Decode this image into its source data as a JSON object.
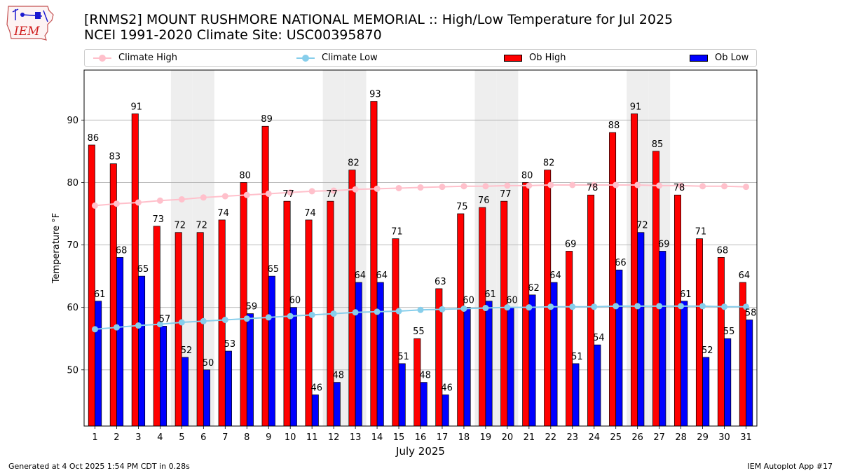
{
  "header": {
    "title_line1": "[RNMS2] MOUNT RUSHMORE NATIONAL MEMORIAL :: High/Low Temperature for Jul 2025",
    "title_line2": "NCEI 1991-2020 Climate Site: USC00395870",
    "logo_text": "IEM"
  },
  "legend": {
    "climate_high": "Climate High",
    "climate_low": "Climate Low",
    "ob_high": "Ob High",
    "ob_low": "Ob Low"
  },
  "footer": {
    "generated": "Generated at 4 Oct 2025 1:54 PM CDT in 0.28s",
    "app": "IEM Autoplot App #17"
  },
  "colors": {
    "ob_high": "#ff0000",
    "ob_low": "#0000ff",
    "climate_high": "#ffc0cb",
    "climate_low": "#87ceeb",
    "weekend_shade": "#eeeeee",
    "grid": "#b0b0b0"
  },
  "chart_data": {
    "type": "bar",
    "title": "[RNMS2] MOUNT RUSHMORE NATIONAL MEMORIAL :: High/Low Temperature for Jul 2025",
    "xlabel": "July 2025",
    "ylabel": "Temperature °F",
    "ylim": [
      41,
      98
    ],
    "yticks": [
      50,
      60,
      70,
      80,
      90
    ],
    "grid": "y",
    "legend_position": "top",
    "categories": [
      "1",
      "2",
      "3",
      "4",
      "5",
      "6",
      "7",
      "8",
      "9",
      "10",
      "11",
      "12",
      "13",
      "14",
      "15",
      "16",
      "17",
      "18",
      "19",
      "20",
      "21",
      "22",
      "23",
      "24",
      "25",
      "26",
      "27",
      "28",
      "29",
      "30",
      "31"
    ],
    "weekend_days": [
      5,
      6,
      12,
      13,
      19,
      20,
      26,
      27
    ],
    "series": [
      {
        "name": "Ob High",
        "kind": "bar",
        "values": [
          86,
          83,
          91,
          73,
          72,
          72,
          74,
          80,
          89,
          77,
          74,
          77,
          82,
          93,
          71,
          55,
          63,
          75,
          76,
          77,
          80,
          82,
          69,
          78,
          88,
          91,
          85,
          78,
          71,
          68,
          64
        ]
      },
      {
        "name": "Ob Low",
        "kind": "bar",
        "values": [
          61,
          68,
          65,
          57,
          52,
          50,
          53,
          59,
          65,
          60,
          46,
          48,
          64,
          64,
          51,
          48,
          46,
          60,
          61,
          60,
          62,
          64,
          51,
          54,
          66,
          72,
          69,
          61,
          52,
          55,
          58
        ]
      },
      {
        "name": "Climate High",
        "kind": "line",
        "values": [
          76.3,
          76.6,
          76.8,
          77.1,
          77.3,
          77.6,
          77.8,
          78.0,
          78.2,
          78.4,
          78.6,
          78.7,
          78.9,
          79.0,
          79.1,
          79.2,
          79.3,
          79.4,
          79.4,
          79.5,
          79.5,
          79.6,
          79.6,
          79.6,
          79.6,
          79.6,
          79.5,
          79.5,
          79.4,
          79.4,
          79.3
        ]
      },
      {
        "name": "Climate Low",
        "kind": "line",
        "values": [
          56.5,
          56.8,
          57.1,
          57.3,
          57.6,
          57.8,
          58.0,
          58.2,
          58.4,
          58.6,
          58.8,
          59.0,
          59.2,
          59.3,
          59.4,
          59.6,
          59.7,
          59.8,
          59.9,
          60.0,
          60.0,
          60.1,
          60.1,
          60.1,
          60.2,
          60.2,
          60.2,
          60.2,
          60.2,
          60.1,
          60.1
        ]
      }
    ]
  }
}
